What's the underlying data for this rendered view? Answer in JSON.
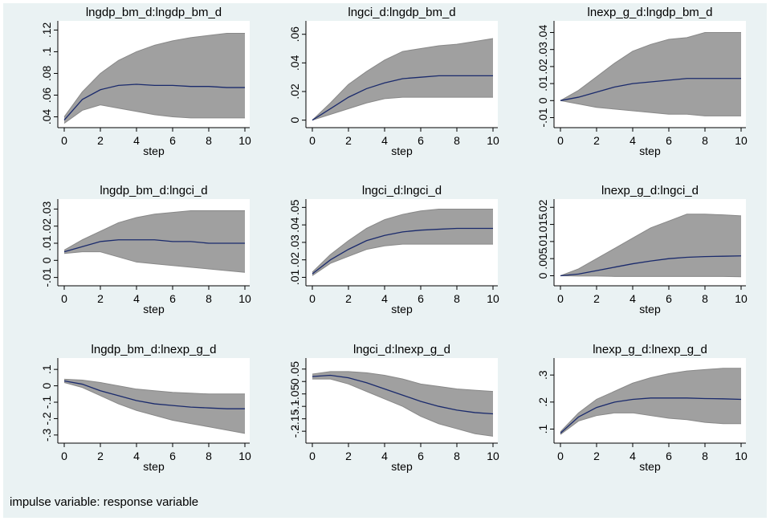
{
  "chart_data": [
    {
      "type": "irf",
      "title": "lngdp_bm_d:lngdp_bm_d",
      "xlabel": "step",
      "x": [
        0,
        1,
        2,
        3,
        4,
        5,
        6,
        7,
        8,
        9,
        10
      ],
      "values": [
        0.037,
        0.056,
        0.065,
        0.069,
        0.07,
        0.069,
        0.069,
        0.068,
        0.068,
        0.067,
        0.067
      ],
      "lower": [
        0.034,
        0.046,
        0.051,
        0.048,
        0.045,
        0.042,
        0.04,
        0.039,
        0.039,
        0.039,
        0.039
      ],
      "upper": [
        0.04,
        0.063,
        0.08,
        0.092,
        0.1,
        0.106,
        0.11,
        0.113,
        0.115,
        0.117,
        0.117
      ],
      "xlim": [
        0,
        10
      ],
      "xticks": [
        0,
        2,
        4,
        6,
        8,
        10
      ],
      "ylim": [
        0.033,
        0.124
      ],
      "yticks": [
        {
          "value": 0.04,
          "label": ".04"
        },
        {
          "value": 0.06,
          "label": ".06"
        },
        {
          "value": 0.08,
          "label": ".08"
        },
        {
          "value": 0.1,
          "label": ".1"
        },
        {
          "value": 0.12,
          "label": ".12"
        }
      ],
      "color": "#1a2a6c",
      "band_color": "#a0a0a0"
    },
    {
      "type": "irf",
      "title": "lngci_d:lngdp_bm_d",
      "xlabel": "step",
      "x": [
        0,
        1,
        2,
        3,
        4,
        5,
        6,
        7,
        8,
        9,
        10
      ],
      "values": [
        0,
        0.008,
        0.016,
        0.022,
        0.026,
        0.029,
        0.03,
        0.031,
        0.031,
        0.031,
        0.031
      ],
      "lower": [
        0,
        0.004,
        0.008,
        0.012,
        0.015,
        0.016,
        0.016,
        0.016,
        0.016,
        0.016,
        0.016
      ],
      "upper": [
        0,
        0.012,
        0.025,
        0.034,
        0.042,
        0.048,
        0.05,
        0.052,
        0.053,
        0.055,
        0.057
      ],
      "xlim": [
        0,
        10
      ],
      "xticks": [
        0,
        2,
        4,
        6,
        8,
        10
      ],
      "ylim": [
        -0.003,
        0.066
      ],
      "yticks": [
        0,
        {
          "value": 0.02,
          "label": ".02"
        },
        {
          "value": 0.04,
          "label": ".04"
        },
        {
          "value": 0.06,
          "label": ".06"
        }
      ],
      "color": "#1a2a6c",
      "band_color": "#a0a0a0"
    },
    {
      "type": "irf",
      "title": "lnexp_g_d:lngdp_bm_d",
      "xlabel": "step",
      "x": [
        0,
        1,
        2,
        3,
        4,
        5,
        6,
        7,
        8,
        9,
        10
      ],
      "values": [
        0,
        0.002,
        0.005,
        0.008,
        0.01,
        0.011,
        0.012,
        0.013,
        0.013,
        0.013,
        0.013
      ],
      "lower": [
        0,
        -0.002,
        -0.004,
        -0.005,
        -0.006,
        -0.007,
        -0.008,
        -0.008,
        -0.009,
        -0.009,
        -0.009
      ],
      "upper": [
        0,
        0.006,
        0.014,
        0.022,
        0.029,
        0.033,
        0.036,
        0.037,
        0.04,
        0.04,
        0.04
      ],
      "xlim": [
        0,
        10
      ],
      "xticks": [
        0,
        2,
        4,
        6,
        8,
        10
      ],
      "ylim": [
        -0.014,
        0.044
      ],
      "yticks": [
        {
          "value": -0.01,
          "label": "-.01"
        },
        0,
        {
          "value": 0.01,
          "label": ".01"
        },
        {
          "value": 0.02,
          "label": ".02"
        },
        {
          "value": 0.03,
          "label": ".03"
        },
        {
          "value": 0.04,
          "label": ".04"
        }
      ],
      "color": "#1a2a6c",
      "band_color": "#a0a0a0"
    },
    {
      "type": "irf",
      "title": "lngdp_bm_d:lngci_d",
      "xlabel": "step",
      "x": [
        0,
        1,
        2,
        3,
        4,
        5,
        6,
        7,
        8,
        9,
        10
      ],
      "values": [
        0.005,
        0.008,
        0.011,
        0.012,
        0.012,
        0.012,
        0.011,
        0.011,
        0.01,
        0.01,
        0.01
      ],
      "lower": [
        0.004,
        0.005,
        0.005,
        0.002,
        -0.001,
        -0.002,
        -0.003,
        -0.004,
        -0.005,
        -0.006,
        -0.007
      ],
      "upper": [
        0.006,
        0.012,
        0.017,
        0.022,
        0.025,
        0.027,
        0.028,
        0.029,
        0.029,
        0.029,
        0.029
      ],
      "xlim": [
        0,
        10
      ],
      "xticks": [
        0,
        2,
        4,
        6,
        8,
        10
      ],
      "ylim": [
        -0.013,
        0.033
      ],
      "yticks": [
        {
          "value": -0.01,
          "label": "-.01"
        },
        0,
        {
          "value": 0.01,
          "label": ".01"
        },
        {
          "value": 0.02,
          "label": ".02"
        },
        {
          "value": 0.03,
          "label": ".03"
        }
      ],
      "color": "#1a2a6c",
      "band_color": "#a0a0a0"
    },
    {
      "type": "irf",
      "title": "lngci_d:lngci_d",
      "xlabel": "step",
      "x": [
        0,
        1,
        2,
        3,
        4,
        5,
        6,
        7,
        8,
        9,
        10
      ],
      "values": [
        0.012,
        0.02,
        0.026,
        0.031,
        0.034,
        0.036,
        0.037,
        0.0375,
        0.038,
        0.038,
        0.038
      ],
      "lower": [
        0.011,
        0.018,
        0.022,
        0.026,
        0.028,
        0.029,
        0.029,
        0.029,
        0.029,
        0.029,
        0.029
      ],
      "upper": [
        0.013,
        0.023,
        0.031,
        0.038,
        0.043,
        0.046,
        0.048,
        0.049,
        0.049,
        0.049,
        0.049
      ],
      "xlim": [
        0,
        10
      ],
      "xticks": [
        0,
        2,
        4,
        6,
        8,
        10
      ],
      "ylim": [
        0.007,
        0.052
      ],
      "yticks": [
        {
          "value": 0.01,
          "label": ".01"
        },
        {
          "value": 0.02,
          "label": ".02"
        },
        {
          "value": 0.03,
          "label": ".03"
        },
        {
          "value": 0.04,
          "label": ".04"
        },
        {
          "value": 0.05,
          "label": ".05"
        }
      ],
      "color": "#1a2a6c",
      "band_color": "#a0a0a0"
    },
    {
      "type": "irf",
      "title": "lnexp_g_d:lngci_d",
      "xlabel": "step",
      "x": [
        0,
        1,
        2,
        3,
        4,
        5,
        6,
        7,
        8,
        9,
        10
      ],
      "values": [
        0,
        0.0005,
        0.0015,
        0.0025,
        0.0035,
        0.0043,
        0.005,
        0.0054,
        0.0056,
        0.0057,
        0.0058
      ],
      "lower": [
        0,
        -0.0001,
        -0.0001,
        -0.0002,
        -0.0002,
        -0.0002,
        -0.0002,
        -0.0002,
        -0.0002,
        -0.0002,
        -0.0003
      ],
      "upper": [
        0,
        0.002,
        0.005,
        0.008,
        0.011,
        0.014,
        0.016,
        0.018,
        0.018,
        0.0178,
        0.0175
      ],
      "xlim": [
        0,
        10
      ],
      "xticks": [
        0,
        2,
        4,
        6,
        8,
        10
      ],
      "ylim": [
        -0.002,
        0.021
      ],
      "yticks": [
        0,
        {
          "value": 0.005,
          "label": ".005"
        },
        {
          "value": 0.01,
          "label": ".01"
        },
        {
          "value": 0.015,
          "label": ".015"
        },
        {
          "value": 0.02,
          "label": ".02"
        }
      ],
      "color": "#1a2a6c",
      "band_color": "#a0a0a0"
    },
    {
      "type": "irf",
      "title": "lngdp_bm_d:lnexp_g_d",
      "xlabel": "step",
      "x": [
        0,
        1,
        2,
        3,
        4,
        5,
        6,
        7,
        8,
        9,
        10
      ],
      "values": [
        0.03,
        0.01,
        -0.03,
        -0.06,
        -0.09,
        -0.11,
        -0.12,
        -0.13,
        -0.135,
        -0.14,
        -0.14
      ],
      "lower": [
        0.02,
        -0.01,
        -0.06,
        -0.11,
        -0.15,
        -0.18,
        -0.21,
        -0.23,
        -0.25,
        -0.27,
        -0.29
      ],
      "upper": [
        0.04,
        0.035,
        0.02,
        0,
        -0.02,
        -0.03,
        -0.04,
        -0.045,
        -0.05,
        -0.05,
        -0.05
      ],
      "xlim": [
        0,
        10
      ],
      "xticks": [
        0,
        2,
        4,
        6,
        8,
        10
      ],
      "ylim": [
        -0.33,
        0.14
      ],
      "yticks": [
        {
          "value": -0.3,
          "label": "-.3"
        },
        {
          "value": -0.2,
          "label": "-.2"
        },
        {
          "value": -0.1,
          "label": "-.1"
        },
        0,
        {
          "value": 0.1,
          "label": ".1"
        }
      ],
      "color": "#1a2a6c",
      "band_color": "#a0a0a0"
    },
    {
      "type": "irf",
      "title": "lngci_d:lnexp_g_d",
      "xlabel": "step",
      "x": [
        0,
        1,
        2,
        3,
        4,
        5,
        6,
        7,
        8,
        9,
        10
      ],
      "values": [
        0.02,
        0.025,
        0.015,
        -0.005,
        -0.03,
        -0.055,
        -0.08,
        -0.1,
        -0.115,
        -0.125,
        -0.13
      ],
      "lower": [
        0.01,
        0.01,
        -0.01,
        -0.04,
        -0.07,
        -0.1,
        -0.14,
        -0.17,
        -0.19,
        -0.21,
        -0.22
      ],
      "upper": [
        0.03,
        0.04,
        0.04,
        0.035,
        0.025,
        0.01,
        -0.01,
        -0.02,
        -0.03,
        -0.035,
        -0.04
      ],
      "xlim": [
        0,
        10
      ],
      "xticks": [
        0,
        2,
        4,
        6,
        8,
        10
      ],
      "ylim": [
        -0.235,
        0.075
      ],
      "yticks": [
        {
          "value": -0.2,
          "label": "-.2"
        },
        {
          "value": -0.15,
          "label": "-.15"
        },
        {
          "value": -0.1,
          "label": "-.1"
        },
        {
          "value": -0.05,
          "label": "-.05"
        },
        0,
        {
          "value": 0.05,
          "label": ".05"
        }
      ],
      "color": "#1a2a6c",
      "band_color": "#a0a0a0"
    },
    {
      "type": "irf",
      "title": "lnexp_g_d:lnexp_g_d",
      "xlabel": "step",
      "x": [
        0,
        1,
        2,
        3,
        4,
        5,
        6,
        7,
        8,
        9,
        10
      ],
      "values": [
        0.085,
        0.145,
        0.18,
        0.2,
        0.21,
        0.215,
        0.215,
        0.215,
        0.213,
        0.212,
        0.21
      ],
      "lower": [
        0.08,
        0.13,
        0.15,
        0.16,
        0.16,
        0.15,
        0.14,
        0.135,
        0.125,
        0.12,
        0.12
      ],
      "upper": [
        0.09,
        0.16,
        0.21,
        0.24,
        0.27,
        0.29,
        0.305,
        0.315,
        0.32,
        0.325,
        0.325
      ],
      "xlim": [
        0,
        10
      ],
      "xticks": [
        0,
        2,
        4,
        6,
        8,
        10
      ],
      "ylim": [
        0.06,
        0.345
      ],
      "yticks": [
        {
          "value": 0.1,
          "label": ".1"
        },
        {
          "value": 0.2,
          "label": ".2"
        },
        {
          "value": 0.3,
          "label": ".3"
        }
      ],
      "color": "#1a2a6c",
      "band_color": "#a0a0a0"
    }
  ],
  "note": "impulse variable: response variable"
}
